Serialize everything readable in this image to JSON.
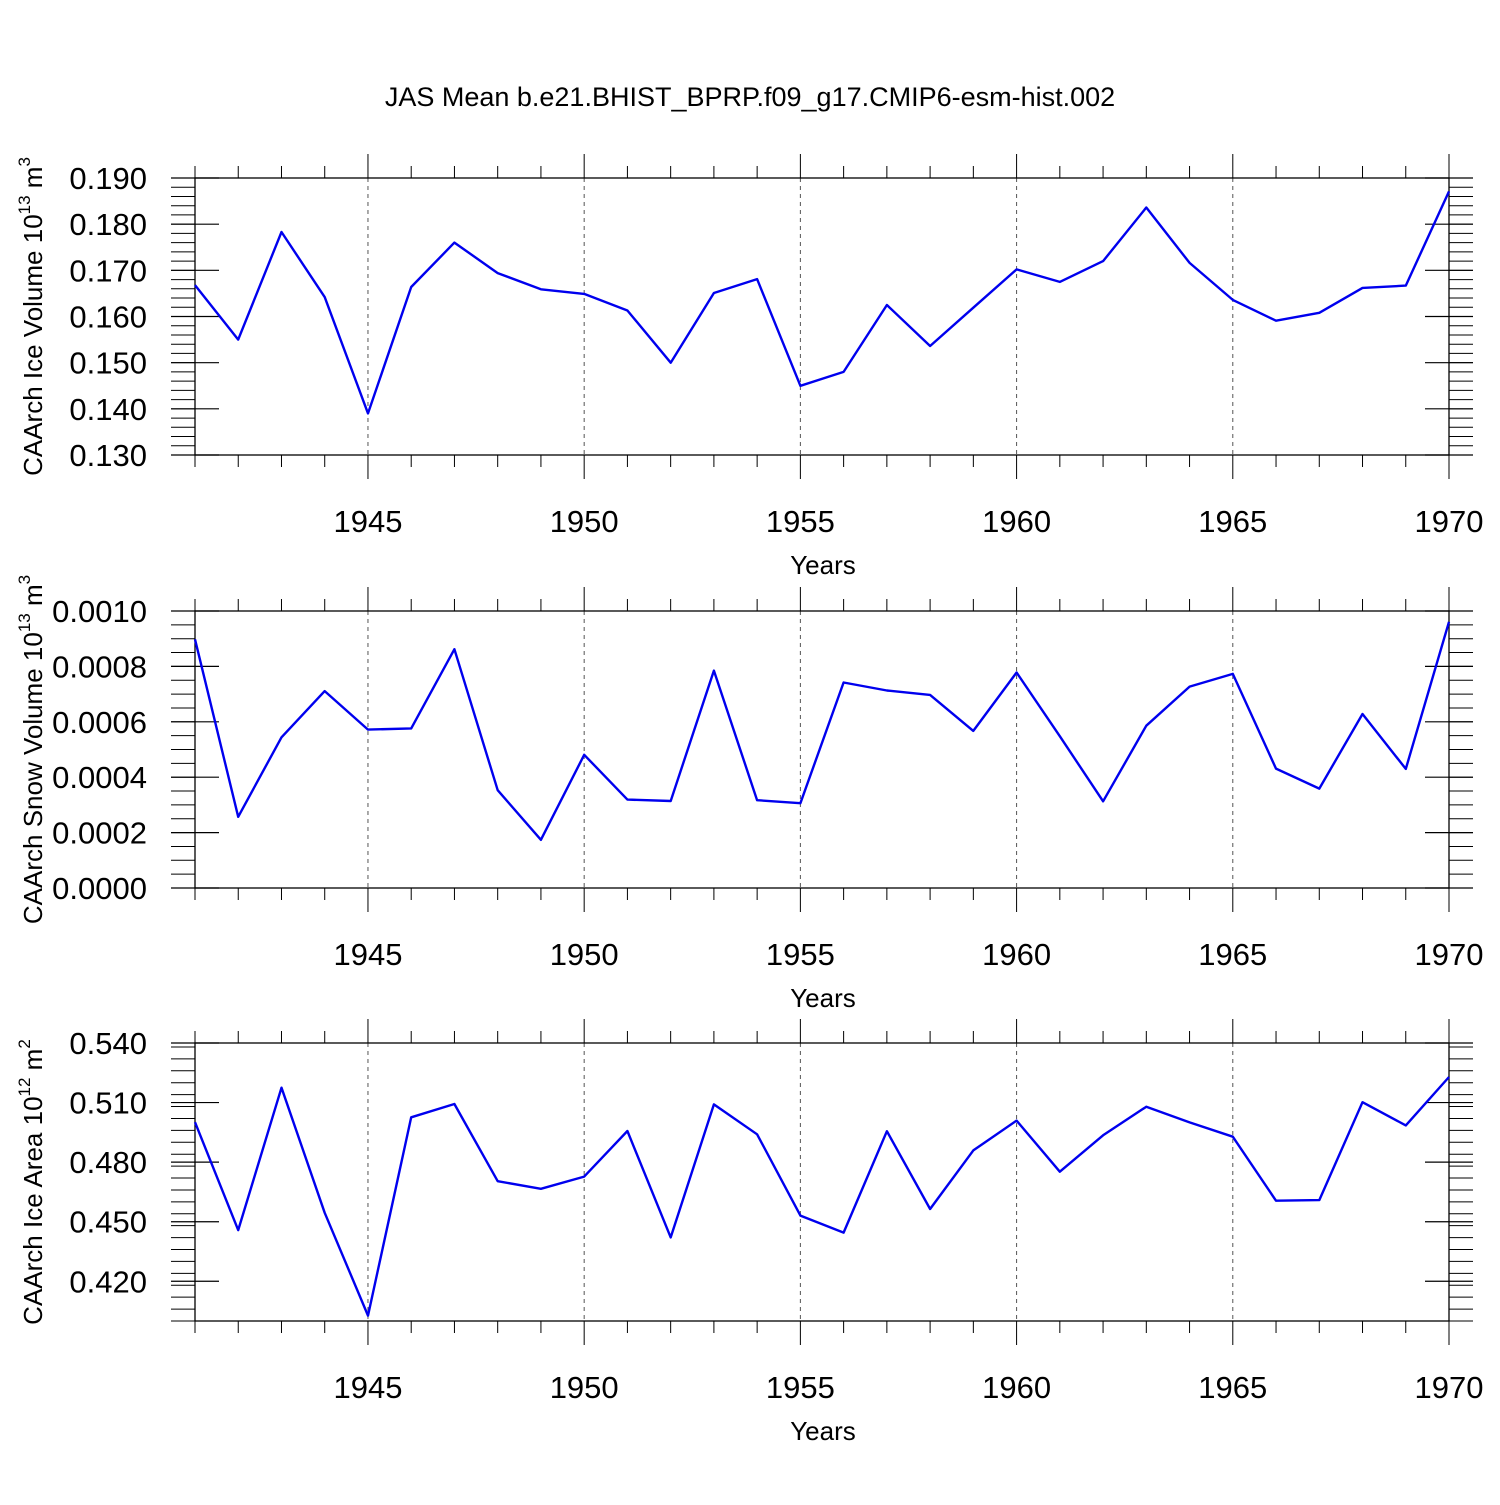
{
  "title": "JAS Mean b.e21.BHIST_BPRP.f09_g17.CMIP6-esm-hist.002",
  "colors": {
    "line": "#0000ee",
    "axis": "#000000",
    "grid": "#555555"
  },
  "chart_data": [
    {
      "type": "line",
      "ylabel": "CAArch Ice Volume 10",
      "ylabel_exp": "13",
      "ylabel_unit": " m",
      "ylabel_unit_exp": "3",
      "xlabel": "Years",
      "xlim": [
        1941,
        1970
      ],
      "ylim": [
        0.13,
        0.19
      ],
      "yticks": [
        0.13,
        0.14,
        0.15,
        0.16,
        0.17,
        0.18,
        0.19
      ],
      "ytick_labels": [
        "0.130",
        "0.140",
        "0.150",
        "0.160",
        "0.170",
        "0.180",
        "0.190"
      ],
      "yminor_step": 0.002,
      "xticks": [
        1945,
        1950,
        1955,
        1960,
        1965,
        1970
      ],
      "xtick_labels": [
        "1945",
        "1950",
        "1955",
        "1960",
        "1965",
        "1970"
      ],
      "x": [
        1941,
        1942,
        1943,
        1944,
        1945,
        1946,
        1947,
        1948,
        1949,
        1950,
        1951,
        1952,
        1953,
        1954,
        1955,
        1956,
        1957,
        1958,
        1959,
        1960,
        1961,
        1962,
        1963,
        1964,
        1965,
        1966,
        1967,
        1968,
        1969,
        1970
      ],
      "values": [
        0.1668,
        0.155,
        0.1783,
        0.1642,
        0.139,
        0.1664,
        0.176,
        0.1694,
        0.1659,
        0.1649,
        0.1613,
        0.15,
        0.1651,
        0.1681,
        0.145,
        0.148,
        0.1625,
        0.1536,
        0.1619,
        0.1702,
        0.1675,
        0.172,
        0.1836,
        0.1716,
        0.1636,
        0.1591,
        0.1608,
        0.1662,
        0.1667,
        0.1871
      ]
    },
    {
      "type": "line",
      "ylabel": "CAArch Snow Volume 10",
      "ylabel_exp": "13",
      "ylabel_unit": " m",
      "ylabel_unit_exp": "3",
      "xlabel": "Years",
      "xlim": [
        1941,
        1970
      ],
      "ylim": [
        0.0,
        0.001
      ],
      "yticks": [
        0.0,
        0.0002,
        0.0004,
        0.0006,
        0.0008,
        0.001
      ],
      "ytick_labels": [
        "0.0000",
        "0.0002",
        "0.0004",
        "0.0006",
        "0.0008",
        "0.0010"
      ],
      "yminor_step": 5e-05,
      "xticks": [
        1945,
        1950,
        1955,
        1960,
        1965,
        1970
      ],
      "xtick_labels": [
        "1945",
        "1950",
        "1955",
        "1960",
        "1965",
        "1970"
      ],
      "x": [
        1941,
        1942,
        1943,
        1944,
        1945,
        1946,
        1947,
        1948,
        1949,
        1950,
        1951,
        1952,
        1953,
        1954,
        1955,
        1956,
        1957,
        1958,
        1959,
        1960,
        1961,
        1962,
        1963,
        1964,
        1965,
        1966,
        1967,
        1968,
        1969,
        1970
      ],
      "values": [
        0.000898,
        0.000257,
        0.000544,
        0.000711,
        0.000572,
        0.000576,
        0.000862,
        0.000353,
        0.000174,
        0.000481,
        0.000319,
        0.000314,
        0.000785,
        0.000317,
        0.000306,
        0.000742,
        0.000713,
        0.000697,
        0.000567,
        0.000778,
        0.000548,
        0.000313,
        0.000586,
        0.000727,
        0.000773,
        0.000431,
        0.000359,
        0.000628,
        0.00043,
        0.000961
      ]
    },
    {
      "type": "line",
      "ylabel": "CAArch Ice Area 10",
      "ylabel_exp": "12",
      "ylabel_unit": " m",
      "ylabel_unit_exp": "2",
      "xlabel": "Years",
      "xlim": [
        1941,
        1970
      ],
      "ylim": [
        0.4,
        0.54
      ],
      "yticks": [
        0.42,
        0.45,
        0.48,
        0.51,
        0.54
      ],
      "ytick_labels": [
        "0.420",
        "0.450",
        "0.480",
        "0.510",
        "0.540"
      ],
      "yminor_step": 0.006,
      "xticks": [
        1945,
        1950,
        1955,
        1960,
        1965,
        1970
      ],
      "xtick_labels": [
        "1945",
        "1950",
        "1955",
        "1960",
        "1965",
        "1970"
      ],
      "x": [
        1941,
        1942,
        1943,
        1944,
        1945,
        1946,
        1947,
        1948,
        1949,
        1950,
        1951,
        1952,
        1953,
        1954,
        1955,
        1956,
        1957,
        1958,
        1959,
        1960,
        1961,
        1962,
        1963,
        1964,
        1965,
        1966,
        1967,
        1968,
        1969,
        1970
      ],
      "values": [
        0.5001,
        0.4458,
        0.5175,
        0.4545,
        0.4027,
        0.5026,
        0.5093,
        0.4704,
        0.4666,
        0.4727,
        0.4957,
        0.4421,
        0.5091,
        0.494,
        0.4531,
        0.4445,
        0.4956,
        0.4564,
        0.4859,
        0.5009,
        0.4752,
        0.4935,
        0.5079,
        0.5,
        0.4928,
        0.4606,
        0.4609,
        0.5102,
        0.4985,
        0.5229
      ]
    }
  ]
}
